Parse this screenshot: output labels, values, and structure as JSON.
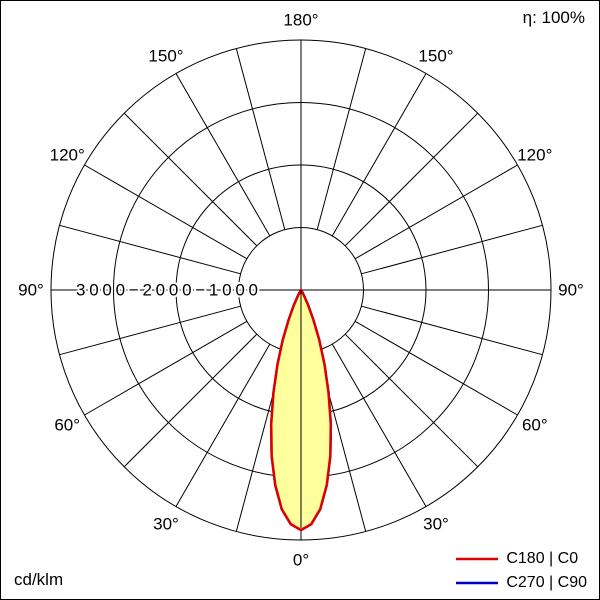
{
  "header": {
    "efficiency": "η: 100%"
  },
  "footer": {
    "unit": "cd/klm"
  },
  "legend": {
    "items": [
      {
        "label": "C180 | C0",
        "color": "#dd0000"
      },
      {
        "label": "C270 | C90",
        "color": "#0000cc"
      }
    ]
  },
  "chart_data": {
    "type": "polar",
    "unit": "cd/klm",
    "efficiency": "η: 100%",
    "angle_ticks_deg": [
      0,
      30,
      60,
      90,
      120,
      150,
      180
    ],
    "angle_tick_labels": [
      "0°",
      "30°",
      "60°",
      "90°",
      "120°",
      "150°",
      "180°"
    ],
    "grid_step_deg": 15,
    "r_ticks": [
      1000,
      2000,
      3000
    ],
    "r_axis_label": "3000−2000−1000",
    "r_max": 4000,
    "grid": true,
    "legend_position": "bottom-right",
    "series": [
      {
        "name": "C180 | C0",
        "color": "#dd0000",
        "fill": "#ffff9e",
        "gamma_deg": [
          0,
          2.5,
          5,
          7.5,
          10,
          12.5,
          15,
          17.5,
          20,
          22.5,
          25,
          27.5,
          30,
          32.5,
          35
        ],
        "values_cd_per_klm": [
          3840,
          3750,
          3520,
          3150,
          2700,
          2200,
          1700,
          1250,
          850,
          520,
          280,
          120,
          40,
          10,
          0
        ]
      },
      {
        "name": "C270 | C90",
        "color": "#0000cc",
        "fill": "none",
        "gamma_deg": [
          0,
          2.5,
          5,
          7.5,
          10,
          12.5,
          15,
          17.5,
          20,
          22.5,
          25,
          27.5,
          30,
          32.5,
          35
        ],
        "values_cd_per_klm": [
          3840,
          3750,
          3520,
          3150,
          2700,
          2200,
          1700,
          1250,
          850,
          520,
          280,
          120,
          40,
          10,
          0
        ]
      }
    ]
  }
}
